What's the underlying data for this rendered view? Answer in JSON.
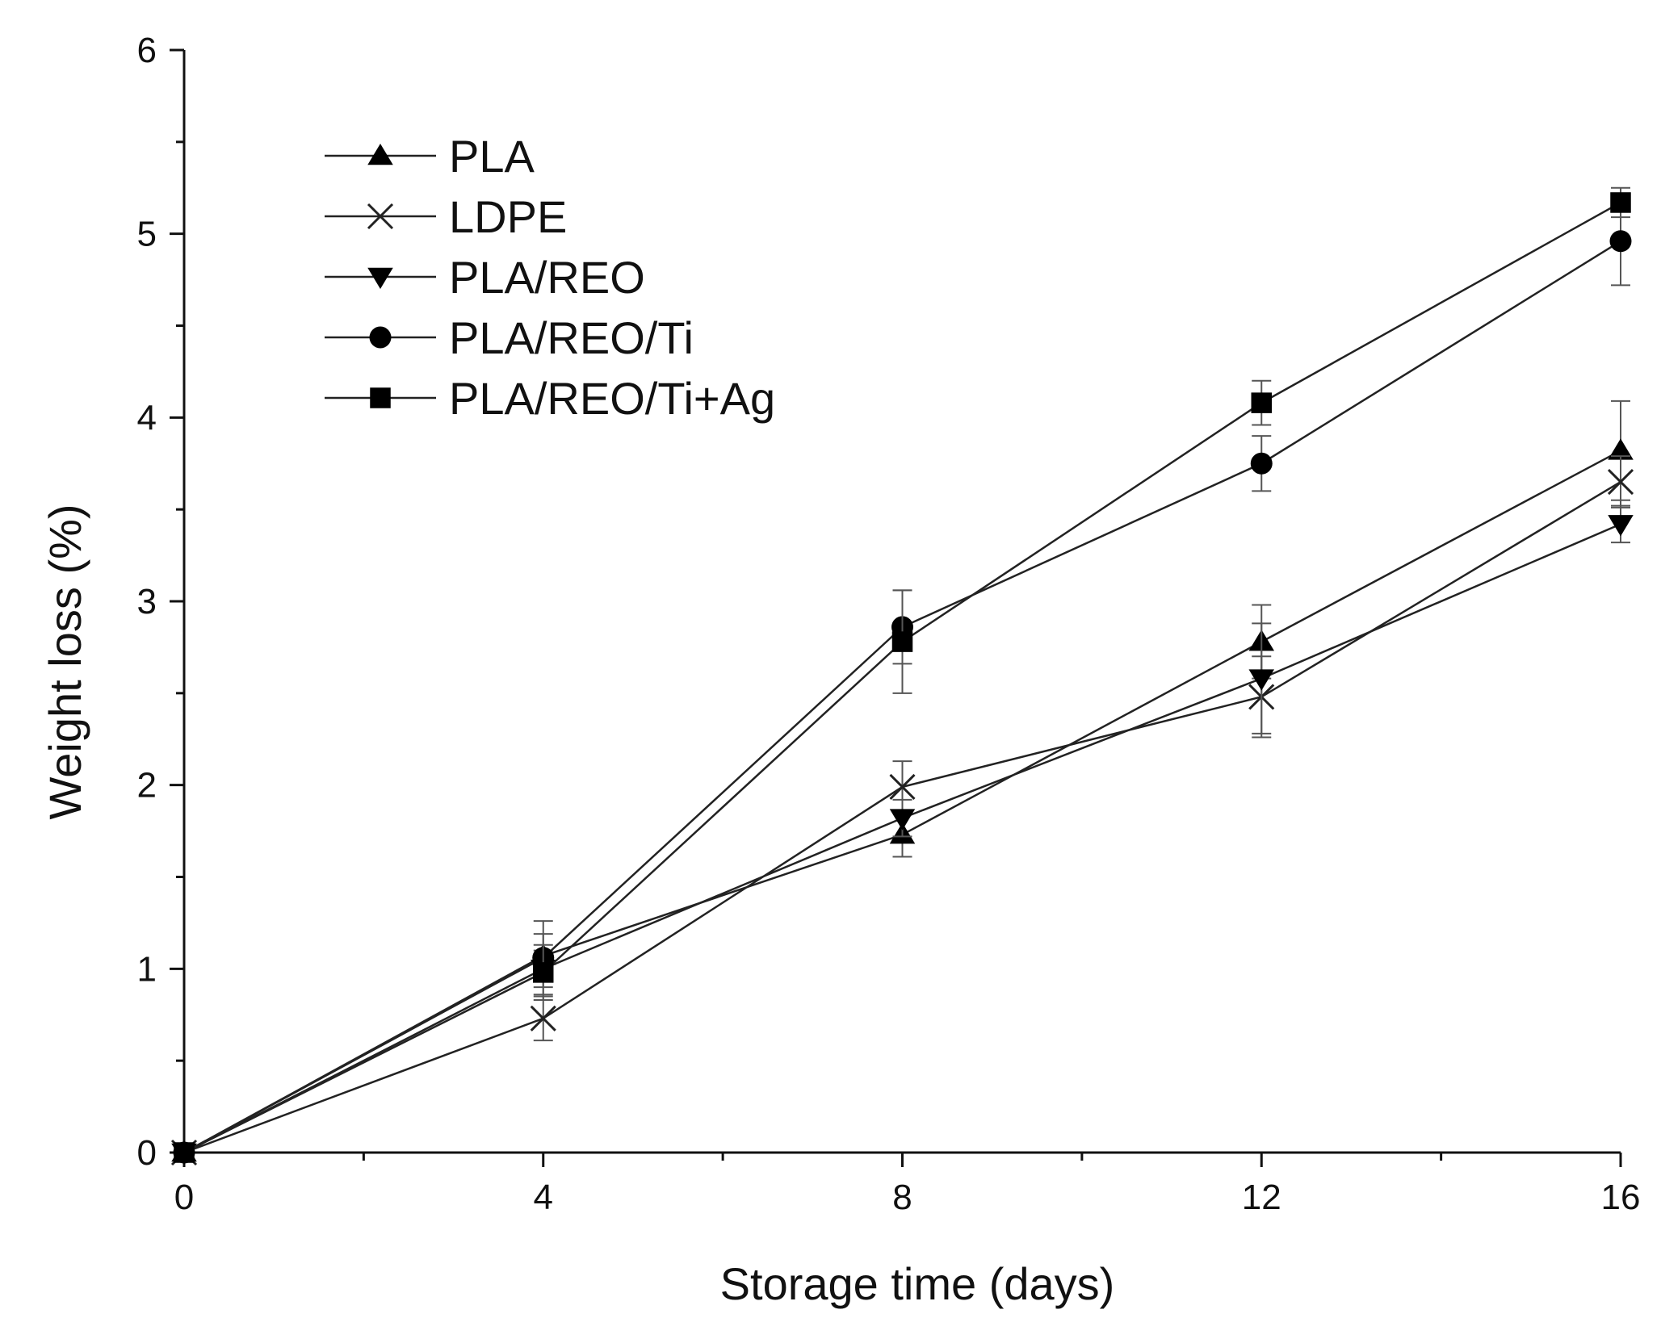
{
  "chart_data": {
    "type": "line",
    "title": "",
    "xlabel": "Storage time (days)",
    "ylabel": "Weight loss (%)",
    "xlim": [
      0,
      16
    ],
    "ylim": [
      0,
      6
    ],
    "xticks": [
      0,
      4,
      8,
      12,
      16
    ],
    "yticks": [
      0,
      1,
      2,
      3,
      4,
      5,
      6
    ],
    "grid": false,
    "legend_position": "top-left",
    "x": [
      0,
      4,
      8,
      12,
      16
    ],
    "series": [
      {
        "name": "PLA",
        "marker": "triangle-up",
        "values": [
          0,
          1.07,
          1.73,
          2.78,
          3.82
        ],
        "errors": [
          0,
          0.12,
          0.12,
          0.2,
          0.27
        ]
      },
      {
        "name": "LDPE",
        "marker": "x",
        "values": [
          0,
          0.73,
          1.99,
          2.48,
          3.65
        ],
        "errors": [
          0,
          0.12,
          0.14,
          0.22,
          0.14
        ]
      },
      {
        "name": "PLA/REO",
        "marker": "triangle-down",
        "values": [
          0,
          1.0,
          1.82,
          2.58,
          3.42
        ],
        "errors": [
          0,
          0.1,
          0.1,
          0.3,
          0.1
        ]
      },
      {
        "name": "PLA/REO/Ti",
        "marker": "circle",
        "values": [
          0,
          1.06,
          2.86,
          3.75,
          4.96
        ],
        "errors": [
          0,
          0.2,
          0.2,
          0.15,
          0.24
        ]
      },
      {
        "name": "PLA/REO/Ti+Ag",
        "marker": "square",
        "values": [
          0,
          0.98,
          2.78,
          4.08,
          5.17
        ],
        "errors": [
          0,
          0.15,
          0.28,
          0.12,
          0.08
        ]
      }
    ]
  }
}
